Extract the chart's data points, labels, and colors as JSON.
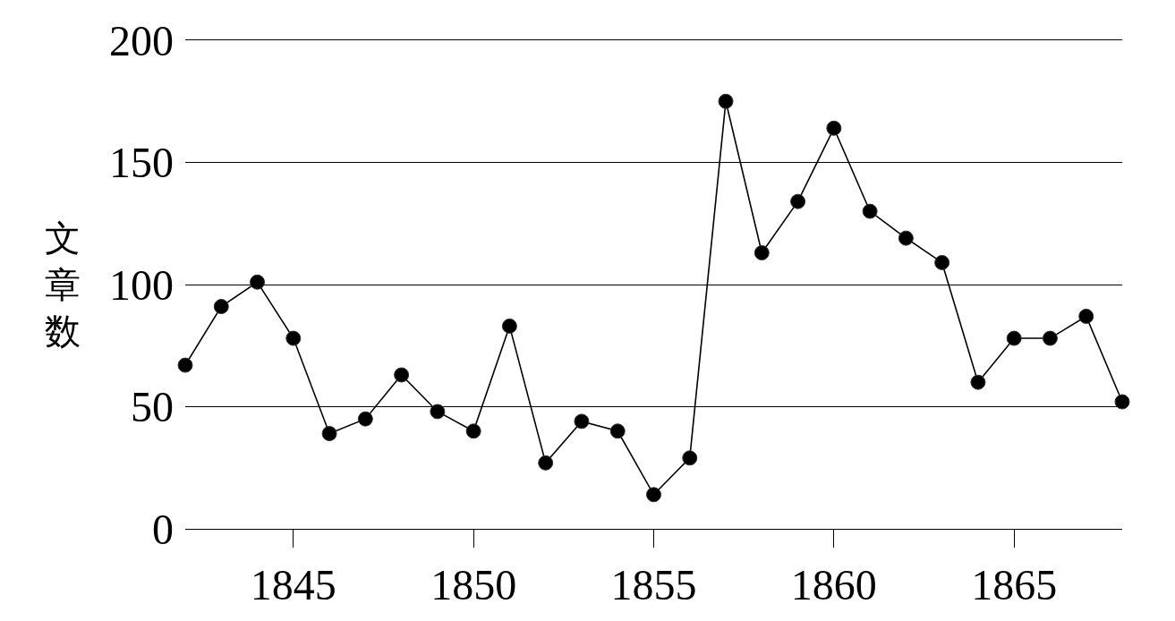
{
  "chart_data": {
    "type": "line",
    "ylabel": "文章数",
    "x": [
      1842,
      1843,
      1844,
      1845,
      1846,
      1847,
      1848,
      1849,
      1850,
      1851,
      1852,
      1853,
      1854,
      1855,
      1856,
      1857,
      1858,
      1859,
      1860,
      1861,
      1862,
      1863,
      1864,
      1865,
      1866,
      1867,
      1868
    ],
    "values": [
      67,
      91,
      101,
      78,
      39,
      45,
      63,
      48,
      40,
      83,
      27,
      44,
      40,
      14,
      29,
      175,
      113,
      134,
      164,
      130,
      119,
      109,
      60,
      78,
      78,
      87,
      52
    ],
    "color": "#000000",
    "marker": "circle",
    "line_style": "solid",
    "xlim": [
      1842,
      1868
    ],
    "xticks": [
      1845,
      1850,
      1855,
      1860,
      1865
    ],
    "ylim": [
      0,
      200
    ],
    "yticks": [
      0,
      50,
      100,
      150,
      200
    ],
    "grid": "y"
  }
}
